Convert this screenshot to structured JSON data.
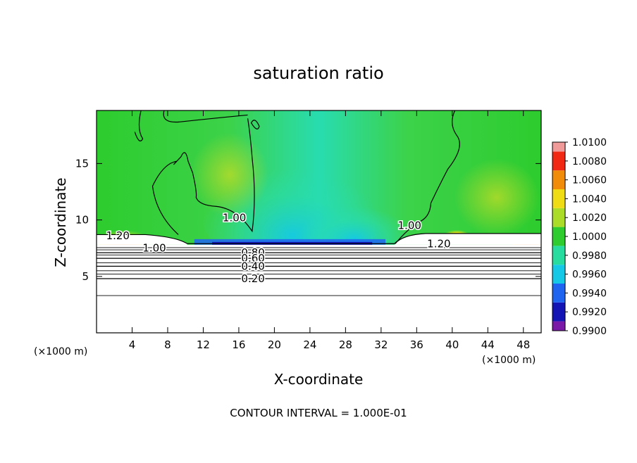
{
  "chart_data": {
    "type": "heatmap",
    "title": "saturation ratio",
    "xlabel": "X-coordinate",
    "ylabel": "Z-coordinate",
    "x_unit_label": "(×1000 m)",
    "y_unit_label": "(×1000 m)",
    "footer": "CONTOUR INTERVAL = 1.000E-01",
    "xlim": [
      0,
      50
    ],
    "ylim": [
      0,
      19.7
    ],
    "x_ticks": [
      4,
      8,
      12,
      16,
      20,
      24,
      28,
      32,
      36,
      40,
      44,
      48
    ],
    "x_tick_labels": [
      "4",
      "8",
      "12",
      "16",
      "20",
      "24",
      "28",
      "32",
      "36",
      "40",
      "44",
      "48"
    ],
    "y_ticks": [
      5,
      10,
      15
    ],
    "y_tick_labels": [
      "5",
      "10",
      "15"
    ],
    "colorbar": {
      "levels": [
        0.99,
        0.992,
        0.994,
        0.996,
        0.998,
        1.0,
        1.002,
        1.004,
        1.006,
        1.008,
        1.01
      ],
      "labels": [
        "0.9900",
        "0.9920",
        "0.9940",
        "0.9960",
        "0.9980",
        "1.0000",
        "1.0020",
        "1.0040",
        "1.0060",
        "1.0080",
        "1.0100"
      ],
      "colors": [
        "#7a18a8",
        "#1414b4",
        "#1e64f0",
        "#14c8e6",
        "#28dca0",
        "#2ecc2e",
        "#aadc28",
        "#f0dc14",
        "#f08c0a",
        "#f02814",
        "#f09a9a"
      ]
    },
    "contour_labels": [
      {
        "text": "1.20",
        "x": 2.4,
        "z": 8.6
      },
      {
        "text": "1.00",
        "x": 6.5,
        "z": 7.5
      },
      {
        "text": "1.00",
        "x": 15.5,
        "z": 10.2
      },
      {
        "text": "0.80",
        "x": 17.6,
        "z": 7.1
      },
      {
        "text": "0.60",
        "x": 17.6,
        "z": 6.6
      },
      {
        "text": "0.40",
        "x": 17.6,
        "z": 5.9
      },
      {
        "text": "0.20",
        "x": 17.6,
        "z": 4.8
      },
      {
        "text": "1.00",
        "x": 35.2,
        "z": 9.5
      },
      {
        "text": "1.20",
        "x": 38.5,
        "z": 7.9
      }
    ],
    "contour_levels_below_cloud": [
      {
        "level": 0.2,
        "z": 4.8
      },
      {
        "level": 0.4,
        "z": 5.9
      },
      {
        "level": 0.6,
        "z": 6.6
      },
      {
        "level": 0.8,
        "z": 7.1
      }
    ],
    "cloud_base_z": 7.8,
    "colors": {
      "background": "#ffffff",
      "subcloud_region": "#ffffff",
      "contour": "#000000"
    }
  }
}
